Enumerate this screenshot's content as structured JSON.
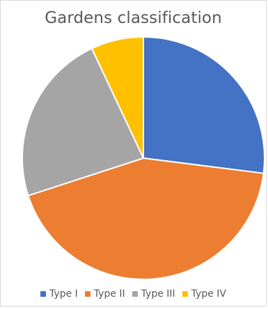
{
  "chart_data": {
    "type": "pie",
    "title": "Gardens classification",
    "categories": [
      "Type I",
      "Type II",
      "Type III",
      "Type IV"
    ],
    "values": [
      27,
      43,
      23,
      7
    ],
    "colors": [
      "#4472C4",
      "#ED7D31",
      "#A5A5A5",
      "#FFC000"
    ],
    "start_angle_deg": 0,
    "direction": "clockwise",
    "legend_position": "bottom"
  }
}
